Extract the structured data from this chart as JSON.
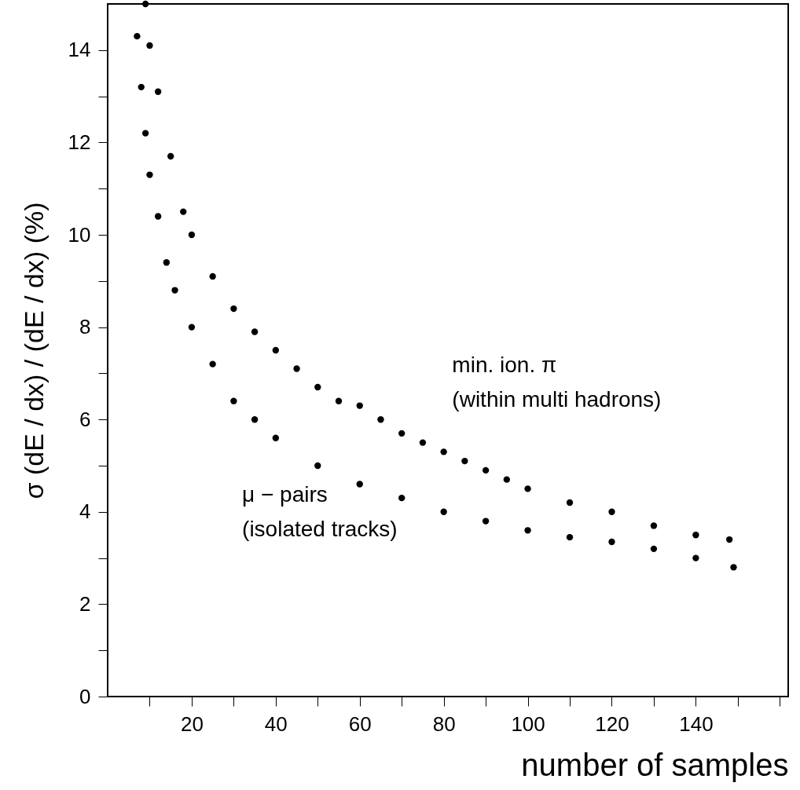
{
  "chart_data": {
    "type": "scatter",
    "xlabel": "number of samples",
    "ylabel": "σ (dE / dx) / (dE / dx) (%)",
    "xlim": [
      0,
      162
    ],
    "ylim": [
      0,
      15
    ],
    "xticks": [
      {
        "value": 10,
        "label": null
      },
      20,
      {
        "value": 30,
        "label": null
      },
      40,
      {
        "value": 50,
        "label": null
      },
      60,
      {
        "value": 70,
        "label": null
      },
      80,
      {
        "value": 90,
        "label": null
      },
      100,
      {
        "value": 110,
        "label": null
      },
      120,
      {
        "value": 130,
        "label": null
      },
      140,
      {
        "value": 150,
        "label": null
      },
      {
        "value": 160,
        "label": null
      }
    ],
    "yticks": [
      0,
      {
        "value": 1,
        "label": null
      },
      2,
      {
        "value": 3,
        "label": null
      },
      4,
      {
        "value": 5,
        "label": null
      },
      6,
      {
        "value": 7,
        "label": null
      },
      8,
      {
        "value": 9,
        "label": null
      },
      10,
      {
        "value": 11,
        "label": null
      },
      12,
      {
        "value": 13,
        "label": null
      },
      14
    ],
    "marker": "circle",
    "grid": false,
    "series": [
      {
        "name": "min. ion. π\n(within multi hadrons)",
        "color": "#000000",
        "x": [
          9,
          10,
          12,
          15,
          18,
          20,
          25,
          30,
          35,
          40,
          45,
          50,
          55,
          60,
          65,
          70,
          75,
          80,
          85,
          90,
          95,
          100,
          110,
          120,
          130,
          140,
          148
        ],
        "values": [
          15.0,
          14.1,
          13.1,
          11.7,
          10.5,
          10.0,
          9.1,
          8.4,
          7.9,
          7.5,
          7.1,
          6.7,
          6.4,
          6.3,
          6.0,
          5.7,
          5.5,
          5.3,
          5.1,
          4.9,
          4.7,
          4.5,
          4.2,
          4.0,
          3.7,
          3.5,
          3.4
        ]
      },
      {
        "name": "μ − pairs\n(isolated tracks)",
        "color": "#000000",
        "x": [
          7,
          8,
          9,
          10,
          12,
          14,
          16,
          20,
          25,
          30,
          35,
          40,
          50,
          60,
          70,
          80,
          90,
          100,
          110,
          120,
          130,
          140,
          149
        ],
        "values": [
          14.3,
          13.2,
          12.2,
          11.3,
          10.4,
          9.4,
          8.8,
          8.0,
          7.2,
          6.4,
          6.0,
          5.6,
          5.0,
          4.6,
          4.3,
          4.0,
          3.8,
          3.6,
          3.45,
          3.35,
          3.2,
          3.0,
          2.8
        ]
      }
    ]
  }
}
